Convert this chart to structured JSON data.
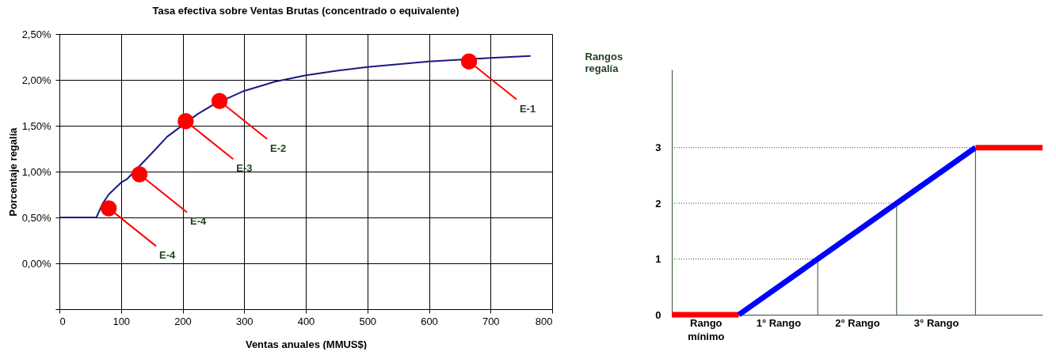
{
  "chart_data": [
    {
      "type": "line",
      "title": "Tasa efectiva sobre Ventas Brutas (concentrado o equivalente)",
      "xlabel": "Ventas anuales (MMUS$)",
      "ylabel": "Porcentaje  regalía",
      "xlim": [
        0,
        800
      ],
      "xticks": [
        0,
        100,
        200,
        300,
        400,
        500,
        600,
        700,
        800
      ],
      "ylim": [
        -0.5,
        2.5
      ],
      "yticks": [
        {
          "value": -0.5,
          "label": null
        },
        {
          "value": 0,
          "label": "0,00%"
        },
        {
          "value": 0.5,
          "label": "0,50%"
        },
        {
          "value": 1,
          "label": "1,00%"
        },
        {
          "value": 1.5,
          "label": "1,50%"
        },
        {
          "value": 2,
          "label": "2,00%"
        },
        {
          "value": 2.5,
          "label": "2,50%"
        }
      ],
      "grid": true,
      "series": [
        {
          "type": "line",
          "color": "#1a1a80",
          "x": [
            0,
            60,
            70,
            80,
            100,
            110,
            150,
            175,
            225,
            250,
            300,
            350,
            400,
            450,
            500,
            550,
            600,
            650,
            700,
            765
          ],
          "values": [
            0.5,
            0.5,
            0.65,
            0.75,
            0.88,
            0.92,
            1.2,
            1.38,
            1.63,
            1.73,
            1.88,
            1.98,
            2.05,
            2.1,
            2.14,
            2.17,
            2.2,
            2.22,
            2.24,
            2.26
          ]
        },
        {
          "type": "scatter",
          "color": "#ff0000",
          "x": [
            80,
            130,
            205,
            260,
            665
          ],
          "values": [
            0.6,
            0.97,
            1.55,
            1.77,
            2.2
          ]
        }
      ],
      "annotations": [
        {
          "text": "E-1",
          "x": 665,
          "y": 2.2
        },
        {
          "text": "E-2",
          "x": 260,
          "y": 1.77
        },
        {
          "text": "E-3",
          "x": 205,
          "y": 1.55
        },
        {
          "text": "E-4",
          "x": 130,
          "y": 0.97
        },
        {
          "text": "E-4",
          "x": 80,
          "y": 0.6
        }
      ]
    },
    {
      "type": "line",
      "ylabel": "Rangos\nregalía",
      "xlim": [
        0,
        4.7
      ],
      "xticks": [
        {
          "value": 0.43,
          "label": "Rango\nmínimo"
        },
        {
          "value": 1.35,
          "label": "1° Rango"
        },
        {
          "value": 2.35,
          "label": "2° Rango"
        },
        {
          "value": 3.35,
          "label": "3° Rango"
        }
      ],
      "ylim": [
        0,
        4.4
      ],
      "yticks": [
        0,
        1,
        2,
        3
      ],
      "series": [
        {
          "type": "line",
          "color": "#ff0000",
          "x": [
            0,
            0.85
          ],
          "values": [
            0,
            0
          ]
        },
        {
          "type": "line",
          "color": "#0000ff",
          "x": [
            0.85,
            3.85
          ],
          "values": [
            0,
            3
          ]
        },
        {
          "type": "line",
          "color": "#ff0000",
          "x": [
            3.85,
            4.7
          ],
          "values": [
            3,
            3
          ]
        }
      ],
      "ref_lines": [
        {
          "axis": "y",
          "value": 1,
          "color": "#2f4f2f",
          "line_style": "dotted"
        },
        {
          "axis": "y",
          "value": 2,
          "color": "#2f4f2f",
          "line_style": "dotted"
        },
        {
          "axis": "y",
          "value": 3,
          "color": "#2f4f2f",
          "line_style": "dotted"
        },
        {
          "axis": "x",
          "value": 1.85,
          "color": "#2f4f2f",
          "line_style": "solid"
        },
        {
          "axis": "x",
          "value": 2.85,
          "color": "#2f4f2f",
          "line_style": "solid"
        },
        {
          "axis": "x",
          "value": 3.85,
          "color": "#2f4f2f",
          "line_style": "solid"
        }
      ]
    }
  ]
}
